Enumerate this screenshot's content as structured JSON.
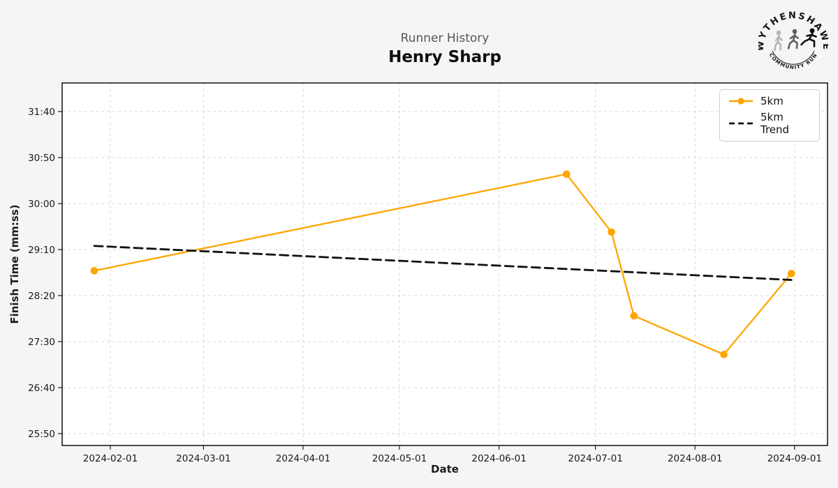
{
  "page": {
    "background": "#f5f5f5",
    "plot_background": "#ffffff"
  },
  "header": {
    "suptitle": "Runner History",
    "title": "Henry Sharp"
  },
  "logo": {
    "top_text": "WYTHENSHAWE",
    "bottom_text": "COMMUNITY RUN"
  },
  "legend": {
    "position": "upper right"
  },
  "chart_data": {
    "type": "line",
    "title": "Runner History",
    "subtitle": "Henry Sharp",
    "xlabel": "Date",
    "ylabel": "Finish Time (mm:ss)",
    "grid": true,
    "legend_position": "upper right",
    "x_ticks": [
      "2024-02-01",
      "2024-03-01",
      "2024-04-01",
      "2024-05-01",
      "2024-06-01",
      "2024-07-01",
      "2024-08-01",
      "2024-09-01"
    ],
    "y_ticks": [
      "25:50",
      "26:40",
      "27:30",
      "28:20",
      "29:10",
      "30:00",
      "30:50",
      "31:40"
    ],
    "xlim": [
      "2024-01-17",
      "2024-09-11"
    ],
    "ylim": [
      "25:37",
      "32:11"
    ],
    "series": [
      {
        "name": "5km",
        "color": "#FFA500",
        "style": "solid",
        "marker": "circle",
        "points": [
          {
            "date": "2024-01-27",
            "time": "28:47"
          },
          {
            "date": "2024-06-22",
            "time": "30:32"
          },
          {
            "date": "2024-07-06",
            "time": "29:29"
          },
          {
            "date": "2024-07-13",
            "time": "27:58"
          },
          {
            "date": "2024-08-10",
            "time": "27:16"
          },
          {
            "date": "2024-08-31",
            "time": "28:44"
          }
        ]
      },
      {
        "name": "5km Trend",
        "color": "#111111",
        "style": "dashed",
        "marker": "none",
        "points": [
          {
            "date": "2024-01-27",
            "time": "29:14"
          },
          {
            "date": "2024-08-31",
            "time": "28:37"
          }
        ]
      }
    ]
  }
}
